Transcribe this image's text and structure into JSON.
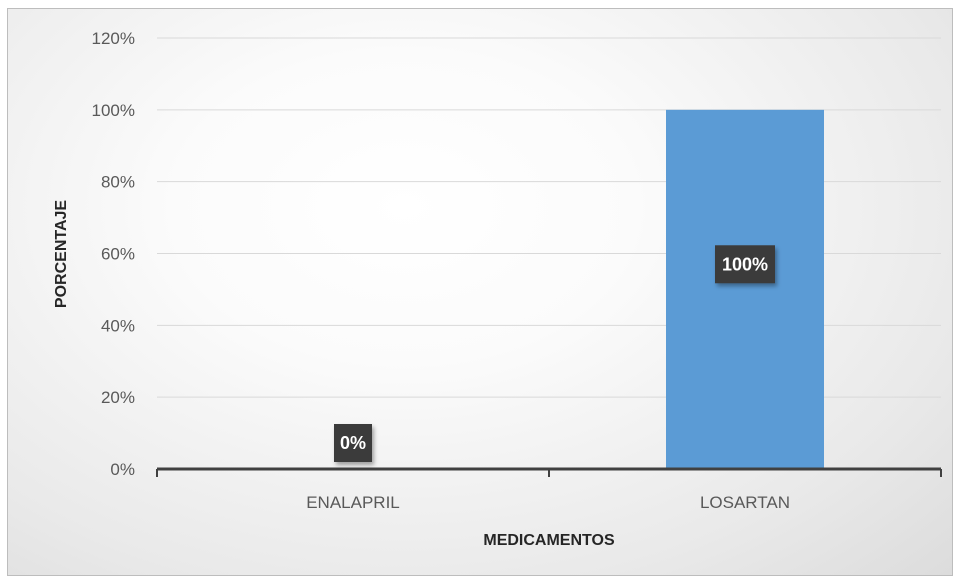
{
  "chart_data": {
    "type": "bar",
    "categories": [
      "ENALAPRIL",
      "LOSARTAN"
    ],
    "values": [
      0,
      100
    ],
    "value_format": "percent",
    "data_labels": [
      "0%",
      "100%"
    ],
    "title": "",
    "xlabel": "MEDICAMENTOS",
    "ylabel": "PORCENTAJE",
    "ylim": [
      0,
      120
    ],
    "yticks": [
      "0%",
      "20%",
      "40%",
      "60%",
      "80%",
      "100%",
      "120%"
    ],
    "grid": true,
    "legend": "none",
    "colors": {
      "bar": "#5b9bd5",
      "grid": "#d9d9d9",
      "axis": "#404040",
      "label_box": "#3a3a3a"
    }
  }
}
